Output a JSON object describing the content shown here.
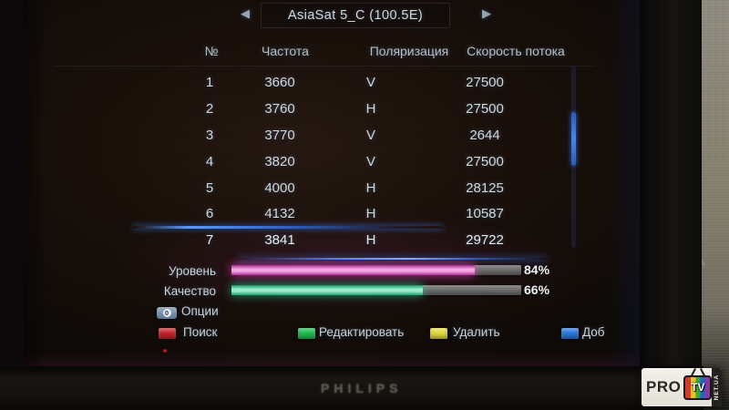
{
  "header": {
    "title": "AsiaSat 5_C (100.5E)",
    "prev_arrow": "◀",
    "next_arrow": "▶"
  },
  "table": {
    "columns": [
      "№",
      "Частота",
      "Поляризация",
      "Скорость потока"
    ],
    "selected_index": 6,
    "rows": [
      {
        "num": "1",
        "frequency": "3660",
        "polarization": "V",
        "symbol_rate": "27500"
      },
      {
        "num": "2",
        "frequency": "3760",
        "polarization": "H",
        "symbol_rate": "27500"
      },
      {
        "num": "3",
        "frequency": "3770",
        "polarization": "V",
        "symbol_rate": "2644"
      },
      {
        "num": "4",
        "frequency": "3820",
        "polarization": "V",
        "symbol_rate": "27500"
      },
      {
        "num": "5",
        "frequency": "4000",
        "polarization": "H",
        "symbol_rate": "28125"
      },
      {
        "num": "6",
        "frequency": "4132",
        "polarization": "H",
        "symbol_rate": "10587"
      },
      {
        "num": "7",
        "frequency": "3841",
        "polarization": "H",
        "symbol_rate": "29722"
      }
    ]
  },
  "signal": {
    "level": {
      "label": "Уровень",
      "percent": 84,
      "value_text": "84%",
      "color": "#ee3fc8"
    },
    "quality": {
      "label": "Качество",
      "percent": 66,
      "value_text": "66%",
      "color": "#23d894"
    }
  },
  "legend": {
    "options_key": "0",
    "options_label": "Опции",
    "buttons": [
      {
        "label": "Поиск",
        "color": "#c9232a"
      },
      {
        "label": "Редактировать",
        "color": "#1fbf4e"
      },
      {
        "label": "Удалить",
        "color": "#e3dc3e"
      },
      {
        "label": "Доб",
        "color": "#2979de"
      }
    ]
  },
  "tv_brand": "PHILIPS",
  "watermark": {
    "pro": "PRO",
    "tv": "TV",
    "net_ua": "NET.UA"
  }
}
